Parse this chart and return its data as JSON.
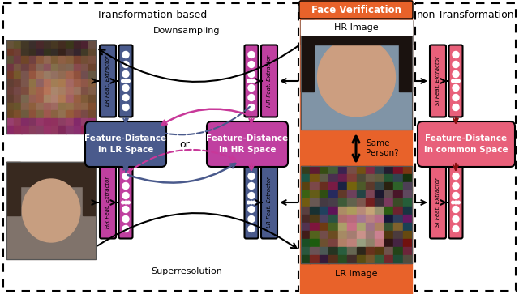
{
  "fig_width": 6.4,
  "fig_height": 3.63,
  "dpi": 100,
  "bg_color": "#ffffff",
  "orange_bg": "#E8622A",
  "title_transform": "Transformation-based",
  "title_face_verif": "Face Verification",
  "title_nontransform": "non-Transformation",
  "label_downsampling": "Downsampling",
  "label_superresolution": "Superresolution",
  "label_hr_image": "HR Image",
  "label_lr_image": "LR Image",
  "label_same_person": "Same Person?",
  "label_fd_lr": "Feature-Distance\nin LR Space",
  "label_fd_hr": "Feature-Distance\nin HR Space",
  "label_fd_common": "Feature-Distance\nin common Space",
  "label_lr_feat": "LR Feat. Extractor",
  "label_hr_feat": "HR Feat. Extractor",
  "label_si_feat": "SI Feat. Extractor",
  "label_or": "or",
  "color_blue": "#4a5a8c",
  "color_pink": "#c83899",
  "color_dark_red": "#8B1010",
  "color_salmon": "#E8607A",
  "color_block_blue": "#4a5a8c",
  "color_block_pink": "#c040a0",
  "color_block_salmon": "#E8607A",
  "color_vec_blue": "#4a5a8c",
  "color_vec_pink": "#c040a0",
  "color_vec_salmon": "#E8607A"
}
